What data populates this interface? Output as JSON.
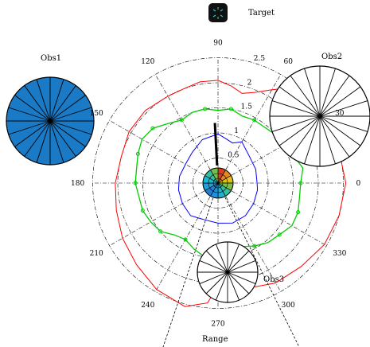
{
  "chart_data": {
    "type": "polar",
    "labels": {
      "target": "Target",
      "obs1": "Obs1",
      "obs2": "Obs2",
      "obs3": "Obs3",
      "range": "Range"
    },
    "radial_ticks": [
      "0.5",
      "1",
      "1.5",
      "2",
      "2.5"
    ],
    "radial_values": [
      0.5,
      1,
      1.5,
      2,
      2.5
    ],
    "angle_ticks": [
      "0",
      "30",
      "60",
      "90",
      "120",
      "150",
      "180",
      "210",
      "240",
      "270",
      "300",
      "330"
    ],
    "angle_values": [
      0,
      30,
      60,
      90,
      120,
      150,
      180,
      210,
      240,
      270,
      300,
      330
    ],
    "rlim": [
      0,
      2.5
    ],
    "obstacles": [
      {
        "name": "Obs1",
        "fill": "#1a7ac6"
      },
      {
        "name": "Obs2",
        "fill": "#ffffff"
      },
      {
        "name": "Obs3",
        "fill": "#ffffff"
      }
    ],
    "heading_marker": {
      "angle_deg": 93,
      "r_from": 0.35,
      "r_to": 1.2
    },
    "series": [
      {
        "color": "#ff0000",
        "theta": [
          0,
          15,
          30,
          45,
          55,
          60,
          68,
          75,
          82,
          90,
          100,
          110,
          120,
          135,
          150,
          165,
          180,
          195,
          210,
          225,
          240,
          255,
          265,
          270,
          280,
          290,
          300,
          315,
          330,
          345
        ],
        "r": [
          2.55,
          2.5,
          2.25,
          2.1,
          2.3,
          2.15,
          1.95,
          1.85,
          1.95,
          2.05,
          2.05,
          2.0,
          2.0,
          2.05,
          2.05,
          2.0,
          2.05,
          2.1,
          2.2,
          2.3,
          2.45,
          2.55,
          2.4,
          2.05,
          2.05,
          2.2,
          2.3,
          2.35,
          2.45,
          2.5
        ]
      },
      {
        "color": "#00cc00",
        "markers": true,
        "theta": [
          0,
          10,
          20,
          30,
          40,
          50,
          60,
          70,
          80,
          90,
          100,
          110,
          120,
          130,
          140,
          150,
          160,
          170,
          180,
          190,
          200,
          210,
          220,
          230,
          240,
          250,
          260,
          270,
          280,
          290,
          300,
          310,
          320,
          330,
          340,
          350
        ],
        "r": [
          1.65,
          1.72,
          1.6,
          1.55,
          1.5,
          1.45,
          1.45,
          1.42,
          1.5,
          1.45,
          1.5,
          1.5,
          1.45,
          1.55,
          1.7,
          1.75,
          1.7,
          1.65,
          1.65,
          1.6,
          1.6,
          1.55,
          1.5,
          1.35,
          1.3,
          1.4,
          1.5,
          1.45,
          1.3,
          1.35,
          1.45,
          1.55,
          1.6,
          1.7,
          1.7,
          1.65
        ]
      },
      {
        "color": "#0000ff",
        "theta": [
          0,
          20,
          40,
          60,
          70,
          80,
          90,
          110,
          130,
          150,
          170,
          180,
          190,
          210,
          230,
          250,
          270,
          290,
          310,
          330,
          350
        ],
        "r": [
          0.78,
          0.8,
          0.82,
          0.95,
          0.85,
          0.9,
          0.98,
          0.92,
          0.8,
          0.75,
          0.78,
          0.78,
          0.8,
          0.82,
          0.85,
          0.78,
          0.8,
          0.85,
          0.85,
          0.82,
          0.8
        ]
      }
    ]
  }
}
